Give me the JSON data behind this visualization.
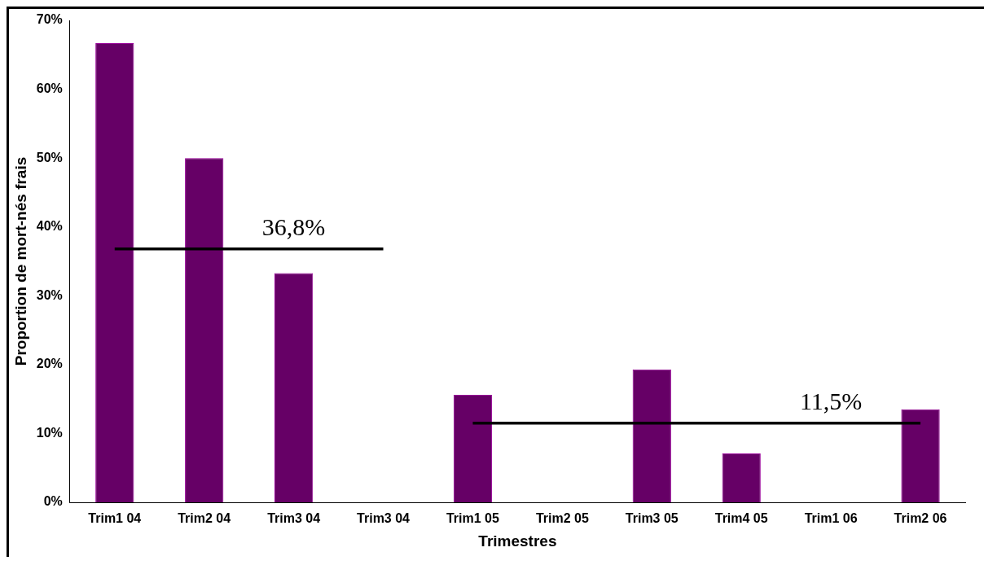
{
  "chart_data": {
    "type": "bar",
    "xlabel": "Trimestres",
    "ylabel": "Proportion de mort-nés frais",
    "categories": [
      "Trim1 04",
      "Trim2 04",
      "Trim3 04",
      "Trim3 04",
      "Trim1 05",
      "Trim2 05",
      "Trim3 05",
      "Trim4 05",
      "Trim1 06",
      "Trim2 06"
    ],
    "series": [
      {
        "color": "#660066",
        "values": [
          66.7,
          50,
          33.3,
          0,
          15.6,
          0,
          19.3,
          7.1,
          0,
          13.5
        ]
      },
      {
        "type": "line",
        "color": "#000000",
        "values": [
          36.8,
          36.8,
          36.8,
          36.8,
          null,
          null,
          null,
          null,
          null,
          null
        ]
      },
      {
        "type": "line",
        "color": "#000000",
        "values": [
          null,
          null,
          null,
          null,
          11.5,
          11.5,
          11.5,
          11.5,
          11.5,
          11.5
        ]
      }
    ],
    "ylim": [
      0,
      70
    ],
    "yticks": [
      {
        "value": 0,
        "label": "0%"
      },
      {
        "value": 10,
        "label": "10%"
      },
      {
        "value": 20,
        "label": "20%"
      },
      {
        "value": 30,
        "label": "30%"
      },
      {
        "value": 40,
        "label": "40%"
      },
      {
        "value": 50,
        "label": "50%"
      },
      {
        "value": 60,
        "label": "60%"
      },
      {
        "value": 70,
        "label": "70%"
      }
    ],
    "annotations": [
      {
        "text": "36,8%",
        "x": "Trim3 04",
        "y": 36.8
      },
      {
        "text": "11,5%",
        "x": "Trim1 06",
        "y": 11.5
      }
    ],
    "grid": false,
    "legend": false,
    "marker": "none",
    "line_style": "solid"
  }
}
